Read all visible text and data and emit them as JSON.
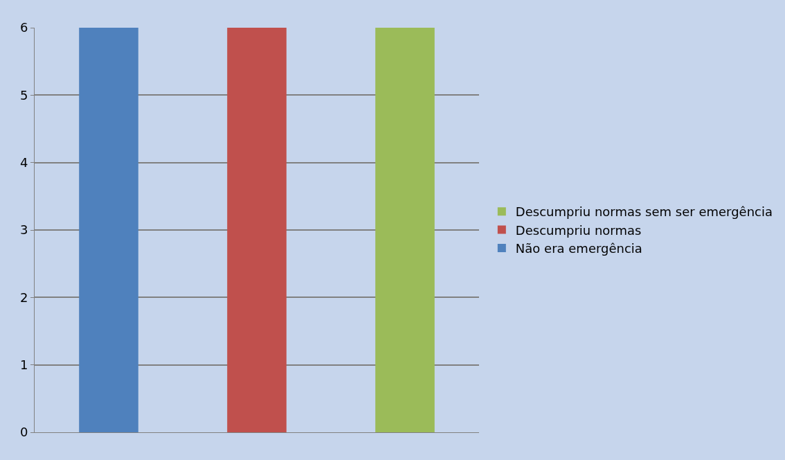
{
  "chart_data": {
    "type": "bar",
    "categories": [
      null,
      null,
      null
    ],
    "series": [
      {
        "name": "Não era emergência",
        "color": "#4f81bd",
        "values": [
          6,
          null,
          null
        ]
      },
      {
        "name": "Descumpriu normas",
        "color": "#c0504d",
        "values": [
          null,
          6,
          null
        ]
      },
      {
        "name": "Descumpriu normas sem ser emergência",
        "color": "#9bbb59",
        "values": [
          null,
          null,
          6
        ]
      }
    ],
    "ylim": [
      0,
      6
    ],
    "yticks": [
      0,
      1,
      2,
      3,
      4,
      5,
      6
    ],
    "grid": "y",
    "legend": "right"
  }
}
